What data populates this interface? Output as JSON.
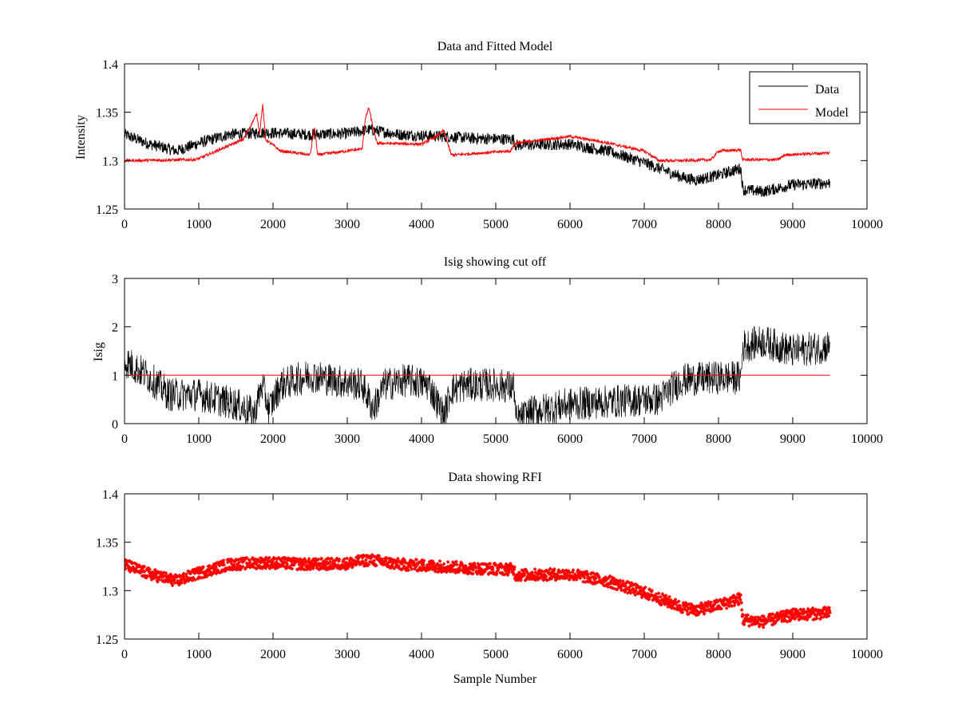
{
  "figure": {
    "background": "#ffffff"
  },
  "chart_data": [
    {
      "type": "line",
      "title": "Data and Fitted Model",
      "xlabel": "",
      "ylabel": "Intensity",
      "xlim": [
        0,
        10000
      ],
      "ylim": [
        1.25,
        1.4
      ],
      "xticks": [
        "0",
        "1000",
        "2000",
        "3000",
        "4000",
        "5000",
        "6000",
        "7000",
        "8000",
        "9000",
        "10000"
      ],
      "yticks": [
        "1.25",
        "1.3",
        "1.35",
        "1.4"
      ],
      "legend": {
        "position": "top-right",
        "entries": [
          "Data",
          "Model"
        ]
      },
      "series": [
        {
          "name": "Data",
          "color": "#000000",
          "noise": 0.006,
          "x": [
            0,
            300,
            700,
            1000,
            1400,
            1900,
            2500,
            3000,
            3300,
            3700,
            4300,
            4700,
            5250,
            5260,
            6000,
            6500,
            7000,
            7500,
            7700,
            8000,
            8300,
            8330,
            8600,
            9000,
            9500
          ],
          "y": [
            1.327,
            1.318,
            1.31,
            1.318,
            1.327,
            1.329,
            1.327,
            1.328,
            1.332,
            1.327,
            1.325,
            1.323,
            1.322,
            1.316,
            1.317,
            1.31,
            1.298,
            1.283,
            1.28,
            1.285,
            1.292,
            1.27,
            1.268,
            1.275,
            1.277
          ]
        },
        {
          "name": "Model",
          "color": "#ff0000",
          "noise": 0.0015,
          "x": [
            0,
            950,
            1000,
            1600,
            1780,
            1820,
            1860,
            1900,
            2100,
            2500,
            2560,
            2600,
            3200,
            3240,
            3290,
            3350,
            3400,
            4000,
            4200,
            4300,
            4400,
            4450,
            5200,
            5260,
            6000,
            6400,
            7000,
            7200,
            7500,
            7900,
            8000,
            8300,
            8320,
            8800,
            8900,
            9500
          ],
          "y": [
            1.3,
            1.301,
            1.302,
            1.322,
            1.348,
            1.328,
            1.358,
            1.322,
            1.31,
            1.306,
            1.335,
            1.306,
            1.312,
            1.342,
            1.355,
            1.333,
            1.318,
            1.317,
            1.325,
            1.331,
            1.306,
            1.306,
            1.31,
            1.318,
            1.325,
            1.32,
            1.31,
            1.3,
            1.3,
            1.301,
            1.31,
            1.311,
            1.301,
            1.301,
            1.306,
            1.308
          ]
        }
      ]
    },
    {
      "type": "line",
      "title": "Isig showing cut off",
      "xlabel": "",
      "ylabel": "Isig",
      "xlim": [
        0,
        10000
      ],
      "ylim": [
        0,
        3
      ],
      "xticks": [
        "0",
        "1000",
        "2000",
        "3000",
        "4000",
        "5000",
        "6000",
        "7000",
        "8000",
        "9000",
        "10000"
      ],
      "yticks": [
        "0",
        "1",
        "2",
        "3"
      ],
      "series": [
        {
          "name": "",
          "color": "#000000",
          "noise": 0.35,
          "x": [
            0,
            300,
            600,
            1000,
            1500,
            1750,
            1850,
            1950,
            2100,
            2500,
            2800,
            3200,
            3350,
            3500,
            3800,
            4100,
            4300,
            4400,
            4600,
            5000,
            5250,
            5270,
            5500,
            6000,
            6500,
            7000,
            7200,
            7500,
            8000,
            8300,
            8330,
            8600,
            9000,
            9500
          ],
          "y": [
            1.3,
            1.0,
            0.6,
            0.6,
            0.4,
            0.2,
            0.8,
            0.3,
            0.8,
            1.0,
            0.9,
            0.8,
            0.3,
            0.8,
            0.9,
            0.8,
            0.15,
            0.7,
            0.8,
            0.8,
            0.75,
            0.05,
            0.25,
            0.4,
            0.45,
            0.5,
            0.5,
            0.9,
            0.95,
            0.95,
            1.6,
            1.7,
            1.5,
            1.6
          ]
        },
        {
          "name": "",
          "color": "#ff0000",
          "noise": 0,
          "x": [
            0,
            9500
          ],
          "y": [
            1,
            1
          ]
        }
      ]
    },
    {
      "type": "scatter",
      "title": "Data showing RFI",
      "xlabel": "Sample Number",
      "ylabel": "",
      "xlim": [
        0,
        10000
      ],
      "ylim": [
        1.25,
        1.4
      ],
      "xticks": [
        "0",
        "1000",
        "2000",
        "3000",
        "4000",
        "5000",
        "6000",
        "7000",
        "8000",
        "9000",
        "10000"
      ],
      "yticks": [
        "1.25",
        "1.3",
        "1.35",
        "1.4"
      ],
      "series": [
        {
          "name": "",
          "color": "#ff0000",
          "noise": 0.006,
          "x": [
            0,
            300,
            700,
            1000,
            1400,
            1900,
            2500,
            3000,
            3300,
            3700,
            4300,
            4700,
            5250,
            5260,
            6000,
            6500,
            7000,
            7500,
            7700,
            8000,
            8300,
            8330,
            8600,
            9000,
            9500
          ],
          "y": [
            1.327,
            1.318,
            1.31,
            1.318,
            1.327,
            1.329,
            1.327,
            1.328,
            1.332,
            1.327,
            1.325,
            1.323,
            1.322,
            1.316,
            1.317,
            1.31,
            1.298,
            1.283,
            1.28,
            1.285,
            1.292,
            1.27,
            1.268,
            1.275,
            1.277
          ]
        }
      ]
    }
  ]
}
